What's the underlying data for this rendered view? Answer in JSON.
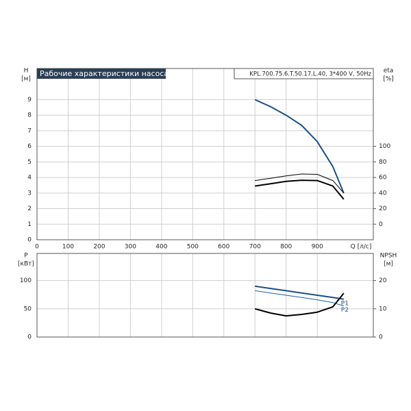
{
  "chart_data": [
    {
      "type": "line",
      "title": "Рабочие характеристики насоса",
      "subtitle": "KPL.700.75.6.T.50.17.L.40, 3*400 V, 50Hz",
      "ylabel": "H",
      "yunit": "[м]",
      "y2label": "eta",
      "y2unit": "[%]",
      "xlabel": "Q [л/с]",
      "x": [
        700,
        750,
        800,
        850,
        900,
        950,
        985
      ],
      "xlim": [
        0,
        1080
      ],
      "xticks": [
        0,
        100,
        200,
        300,
        400,
        500,
        600,
        700,
        800,
        900
      ],
      "ylim": [
        0,
        11
      ],
      "yticks": [
        0,
        1,
        2,
        3,
        4,
        5,
        6,
        7,
        8,
        9
      ],
      "y2lim": [
        -20,
        200
      ],
      "y2ticks": [
        0,
        20,
        40,
        60,
        80,
        100
      ],
      "grid": true,
      "series": [
        {
          "color": "#1c4f80",
          "width": 2,
          "values": [
            9.0,
            8.55,
            8.0,
            7.35,
            6.3,
            4.7,
            3.0
          ]
        },
        {
          "color": "#000000",
          "width": 1,
          "axis": "y2",
          "values": [
            56,
            59,
            62,
            64.5,
            64,
            56,
            40
          ]
        },
        {
          "color": "#000000",
          "width": 2,
          "axis": "y2",
          "values": [
            49,
            52,
            55,
            56.5,
            56,
            49,
            32
          ]
        }
      ]
    },
    {
      "type": "line",
      "ylabel": "P",
      "yunit": "[кВт]",
      "y2label": "NPSH",
      "y2unit": "[м]",
      "x": [
        700,
        750,
        800,
        850,
        900,
        950,
        985
      ],
      "xlim": [
        0,
        1080
      ],
      "ylim": [
        0,
        148
      ],
      "yticks": [
        0,
        50,
        100
      ],
      "y2lim": [
        0,
        29.6
      ],
      "y2ticks": [
        0,
        10,
        20
      ],
      "grid": true,
      "series": [
        {
          "name": "P1",
          "color": "#1c4f80",
          "width": 2,
          "values": [
            90,
            86,
            82,
            78,
            74,
            70,
            67
          ]
        },
        {
          "name": "P2",
          "color": "#1c5f9a",
          "width": 1,
          "values": [
            82,
            78,
            74,
            70,
            66,
            61,
            55
          ]
        },
        {
          "color": "#000000",
          "width": 2,
          "axis": "y2",
          "values": [
            10,
            8.5,
            7.5,
            8,
            8.8,
            10.7,
            15.5
          ]
        }
      ]
    }
  ]
}
